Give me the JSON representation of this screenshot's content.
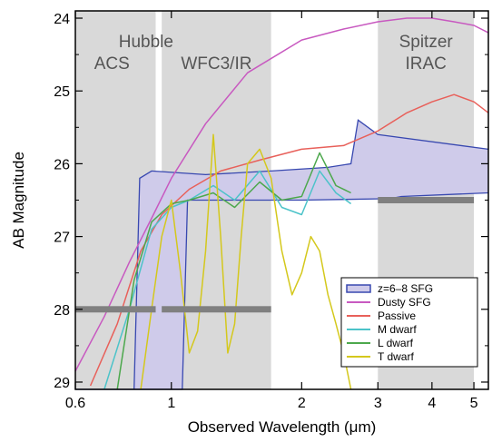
{
  "chart_data": {
    "type": "line",
    "xlabel": "Observed Wavelength (μm)",
    "ylabel": "AB Magnitude",
    "xscale": "log",
    "xlim": [
      0.6,
      5.4
    ],
    "ylim": [
      29.1,
      23.9
    ],
    "yaxis_inverted": true,
    "xticks": [
      0.6,
      1,
      2,
      3,
      4,
      5
    ],
    "yticks": [
      24,
      25,
      26,
      27,
      28,
      29
    ],
    "grid": false,
    "legend_position": "bottom-right",
    "colors": {
      "band": "#d9d9d9",
      "limit": "#808080",
      "sfg_fill": "#cfcbea",
      "sfg_line": "#3848b0",
      "dusty": "#c859c0",
      "passive": "#e8605a",
      "m_dwarf": "#4cc3c9",
      "l_dwarf": "#4ca84c",
      "t_dwarf": "#d4c81c"
    },
    "bands": [
      {
        "label_lines": [
          "Hubble",
          "ACS"
        ],
        "x_range": [
          0.6,
          0.92
        ],
        "depth_limit": 28.0
      },
      {
        "label_lines": [
          "WFC3/IR"
        ],
        "x_range": [
          0.95,
          1.7
        ],
        "depth_limit": 28.0
      },
      {
        "label_lines": [
          "Spitzer",
          "IRAC"
        ],
        "x_range": [
          3.0,
          5.0
        ],
        "depth_limit": 26.5
      }
    ],
    "sfg_envelope": {
      "name": "z=6–8 SFG",
      "upper": {
        "x": [
          0.82,
          0.845,
          0.9,
          1.2,
          1.7,
          2.3,
          2.6,
          2.7,
          3.0,
          5.4
        ],
        "y": [
          29.1,
          26.2,
          26.1,
          26.15,
          26.1,
          26.05,
          26.0,
          25.4,
          25.6,
          25.8
        ]
      },
      "lower": {
        "x": [
          0.6,
          1.06,
          1.09,
          2.0,
          3.2,
          3.4,
          5.4
        ],
        "y": [
          29.1,
          29.1,
          26.5,
          26.5,
          26.48,
          26.45,
          26.4
        ]
      }
    },
    "series": [
      {
        "name": "Dusty SFG",
        "x": [
          0.6,
          0.7,
          0.8,
          0.9,
          1.0,
          1.2,
          1.5,
          2.0,
          2.5,
          3.0,
          3.5,
          4.0,
          4.5,
          5.0,
          5.4
        ],
        "y": [
          28.85,
          28.1,
          27.35,
          26.75,
          26.2,
          25.45,
          24.75,
          24.3,
          24.15,
          24.05,
          24.0,
          24.0,
          24.05,
          24.1,
          24.2
        ]
      },
      {
        "name": "Passive",
        "x": [
          0.65,
          0.75,
          0.85,
          0.95,
          1.1,
          1.3,
          1.6,
          2.0,
          2.5,
          3.0,
          3.5,
          4.0,
          4.5,
          5.0,
          5.4
        ],
        "y": [
          29.05,
          28.2,
          27.2,
          26.7,
          26.35,
          26.1,
          25.95,
          25.8,
          25.75,
          25.55,
          25.3,
          25.15,
          25.05,
          25.15,
          25.3
        ]
      },
      {
        "name": "M dwarf",
        "x": [
          0.7,
          0.8,
          0.9,
          1.0,
          1.1,
          1.25,
          1.4,
          1.6,
          1.8,
          2.0,
          2.2,
          2.4,
          2.6
        ],
        "y": [
          29.1,
          28.0,
          26.9,
          26.6,
          26.5,
          26.3,
          26.5,
          26.1,
          26.6,
          26.7,
          26.1,
          26.4,
          26.55
        ]
      },
      {
        "name": "L dwarf",
        "x": [
          0.75,
          0.82,
          0.9,
          1.0,
          1.1,
          1.25,
          1.4,
          1.6,
          1.8,
          2.0,
          2.2,
          2.4,
          2.6
        ],
        "y": [
          29.1,
          27.6,
          26.8,
          26.55,
          26.5,
          26.4,
          26.6,
          26.25,
          26.5,
          26.45,
          25.85,
          26.3,
          26.4
        ]
      },
      {
        "name": "T dwarf",
        "x": [
          0.85,
          0.9,
          0.95,
          1.0,
          1.05,
          1.1,
          1.15,
          1.2,
          1.25,
          1.3,
          1.35,
          1.4,
          1.45,
          1.5,
          1.6,
          1.7,
          1.8,
          1.9,
          2.0,
          2.1,
          2.2,
          2.3,
          2.4,
          2.5,
          2.6
        ],
        "y": [
          29.1,
          28.0,
          27.0,
          26.5,
          27.5,
          28.6,
          28.3,
          27.2,
          25.6,
          27.0,
          28.6,
          28.2,
          27.0,
          26.0,
          25.8,
          26.2,
          27.2,
          27.8,
          27.5,
          27.0,
          27.2,
          27.8,
          28.2,
          28.6,
          29.1
        ]
      }
    ],
    "legend": [
      {
        "label": "z=6–8 SFG",
        "style": "box"
      },
      {
        "label": "Dusty SFG",
        "style": "line"
      },
      {
        "label": "Passive",
        "style": "line"
      },
      {
        "label": "M dwarf",
        "style": "line"
      },
      {
        "label": "L dwarf",
        "style": "line"
      },
      {
        "label": "T dwarf",
        "style": "line"
      }
    ]
  }
}
